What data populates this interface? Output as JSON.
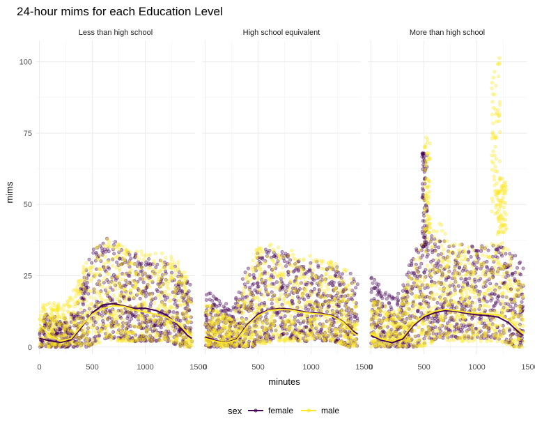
{
  "chart_data": {
    "type": "scatter",
    "title": "24-hour mims for each Education Level",
    "xlabel": "minutes",
    "ylabel": "mims",
    "xlim": [
      -30,
      1470
    ],
    "ylim": [
      -2.5,
      107.5
    ],
    "x_ticks": [
      0,
      500,
      1000,
      1500
    ],
    "x_tick_labels": [
      "0",
      "500",
      "1000",
      "1500"
    ],
    "y_ticks": [
      0,
      25,
      50,
      75,
      100
    ],
    "y_tick_labels": [
      "0",
      "25",
      "50",
      "75",
      "100"
    ],
    "grid": true,
    "legend": {
      "title": "sex",
      "position": "bottom",
      "entries": [
        {
          "name": "female",
          "color": "#440154"
        },
        {
          "name": "male",
          "color": "#FDE725"
        }
      ]
    },
    "panels": [
      {
        "label": "Less than high school",
        "smooth": {
          "female": {
            "x": [
              0,
              100,
              200,
              300,
              400,
              500,
              600,
              700,
              800,
              900,
              1000,
              1100,
              1200,
              1300,
              1400,
              1440
            ],
            "y": [
              3.0,
              2.2,
              1.6,
              2.5,
              7.0,
              12.0,
              14.8,
              15.2,
              14.4,
              13.5,
              13.6,
              12.8,
              11.2,
              8.0,
              4.0,
              3.0
            ]
          },
          "male": {
            "x": [
              0,
              100,
              200,
              300,
              400,
              500,
              600,
              700,
              800,
              900,
              1000,
              1100,
              1200,
              1300,
              1400,
              1440
            ],
            "y": [
              8.0,
              4.0,
              2.0,
              3.0,
              7.5,
              11.5,
              13.5,
              14.5,
              14.2,
              13.0,
              12.2,
              11.5,
              10.5,
              8.5,
              5.0,
              4.0
            ]
          }
        },
        "female_band": {
          "x": [
            0,
            250,
            350,
            450,
            550,
            650,
            750,
            900,
            1050,
            1200,
            1350,
            1440
          ],
          "lo": [
            0,
            0,
            0,
            0,
            2,
            3,
            3,
            2,
            2,
            2,
            0,
            0
          ],
          "hi": [
            12,
            10,
            14,
            30,
            38,
            40,
            36,
            33,
            31,
            30,
            27,
            22
          ]
        },
        "male_band": {
          "x": [
            0,
            250,
            350,
            450,
            550,
            650,
            750,
            900,
            1050,
            1200,
            1350,
            1440
          ],
          "lo": [
            0,
            0,
            0,
            0,
            1,
            2,
            2,
            2,
            2,
            2,
            0,
            0
          ],
          "hi": [
            17,
            15,
            22,
            32,
            37,
            38,
            36,
            34,
            33,
            33,
            29,
            20
          ]
        }
      },
      {
        "label": "High school equivalent",
        "smooth": {
          "female": {
            "x": [
              0,
              100,
              200,
              300,
              400,
              500,
              600,
              700,
              800,
              900,
              1000,
              1100,
              1200,
              1300,
              1400,
              1440
            ],
            "y": [
              3.5,
              2.2,
              1.5,
              2.8,
              8.0,
              11.5,
              13.0,
              13.5,
              13.3,
              12.6,
              12.0,
              11.8,
              11.0,
              9.0,
              5.5,
              4.5
            ]
          },
          "male": {
            "x": [
              0,
              100,
              200,
              300,
              400,
              500,
              600,
              700,
              800,
              900,
              1000,
              1100,
              1200,
              1300,
              1400,
              1440
            ],
            "y": [
              3.0,
              2.0,
              1.4,
              2.5,
              7.5,
              11.0,
              12.8,
              13.2,
              13.0,
              12.3,
              11.8,
              11.5,
              10.8,
              8.8,
              5.0,
              4.0
            ]
          }
        },
        "female_band": {
          "x": [
            0,
            250,
            350,
            450,
            550,
            650,
            750,
            900,
            1050,
            1200,
            1350,
            1440
          ],
          "lo": [
            0,
            0,
            0,
            0,
            2,
            2,
            3,
            2,
            2,
            2,
            0,
            0
          ],
          "hi": [
            20,
            14,
            24,
            32,
            34,
            35,
            33,
            30,
            30,
            29,
            27,
            24
          ]
        },
        "male_band": {
          "x": [
            0,
            250,
            350,
            450,
            550,
            650,
            750,
            900,
            1050,
            1200,
            1350,
            1440
          ],
          "lo": [
            0,
            0,
            0,
            0,
            1,
            2,
            2,
            2,
            2,
            2,
            0,
            0
          ],
          "hi": [
            16,
            10,
            20,
            33,
            37,
            37,
            35,
            33,
            32,
            30,
            27,
            20
          ]
        }
      },
      {
        "label": "More than high school",
        "smooth": {
          "female": {
            "x": [
              0,
              100,
              200,
              300,
              400,
              500,
              600,
              700,
              800,
              900,
              1000,
              1100,
              1200,
              1300,
              1400,
              1440
            ],
            "y": [
              4.0,
              2.4,
              1.5,
              2.8,
              7.5,
              10.5,
              12.0,
              12.8,
              12.5,
              11.8,
              11.3,
              11.0,
              10.5,
              8.5,
              5.0,
              4.0
            ]
          },
          "male": {
            "x": [
              0,
              100,
              200,
              300,
              400,
              500,
              600,
              700,
              800,
              900,
              1000,
              1100,
              1200,
              1300,
              1400,
              1440
            ],
            "y": [
              4.5,
              2.8,
              2.0,
              3.5,
              8.0,
              11.0,
              12.5,
              13.2,
              12.8,
              12.2,
              11.8,
              11.6,
              11.2,
              9.5,
              6.0,
              5.0
            ]
          }
        },
        "female_band": {
          "x": [
            0,
            250,
            350,
            450,
            550,
            650,
            750,
            900,
            1050,
            1200,
            1350,
            1440
          ],
          "lo": [
            0,
            0,
            0,
            0,
            2,
            3,
            3,
            3,
            3,
            3,
            0,
            0
          ],
          "hi": [
            25,
            18,
            28,
            36,
            40,
            38,
            36,
            36,
            36,
            36,
            33,
            28
          ]
        },
        "male_band": {
          "x": [
            0,
            250,
            350,
            450,
            550,
            650,
            750,
            900,
            1050,
            1200,
            1350,
            1440
          ],
          "lo": [
            0,
            0,
            0,
            0,
            1,
            2,
            2,
            2,
            2,
            2,
            0,
            0
          ],
          "hi": [
            18,
            12,
            24,
            35,
            45,
            44,
            38,
            36,
            36,
            40,
            33,
            22
          ]
        },
        "peaks": [
          {
            "sex": "female",
            "x": [
              480,
              530
            ],
            "y": [
              35,
              69
            ]
          },
          {
            "sex": "male",
            "x": [
              500,
              560
            ],
            "y": [
              40,
              74
            ]
          },
          {
            "sex": "male",
            "x": [
              1140,
              1220
            ],
            "y": [
              45,
              104
            ]
          },
          {
            "sex": "male",
            "x": [
              1200,
              1280
            ],
            "y": [
              40,
              60
            ]
          }
        ]
      }
    ]
  }
}
